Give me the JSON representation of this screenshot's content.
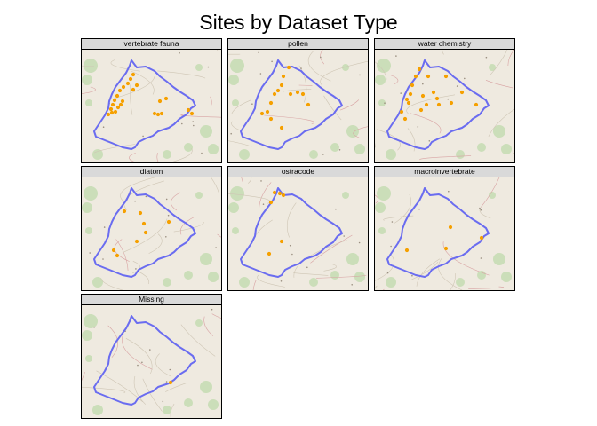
{
  "title": "Sites by Dataset Type",
  "colors": {
    "boundary": "#6a6cf0",
    "site": "#f5a000",
    "strip": "#d9d9d9",
    "basemap": "#efeae0"
  },
  "panels": [
    {
      "label": "vertebrate fauna",
      "sites": 24
    },
    {
      "label": "pollen",
      "sites": 14
    },
    {
      "label": "water chemistry",
      "sites": 19
    },
    {
      "label": "diatom",
      "sites": 8
    },
    {
      "label": "ostracode",
      "sites": 6
    },
    {
      "label": "macroinvertebrate",
      "sites": 4
    },
    {
      "label": "Missing",
      "sites": 1
    }
  ]
}
